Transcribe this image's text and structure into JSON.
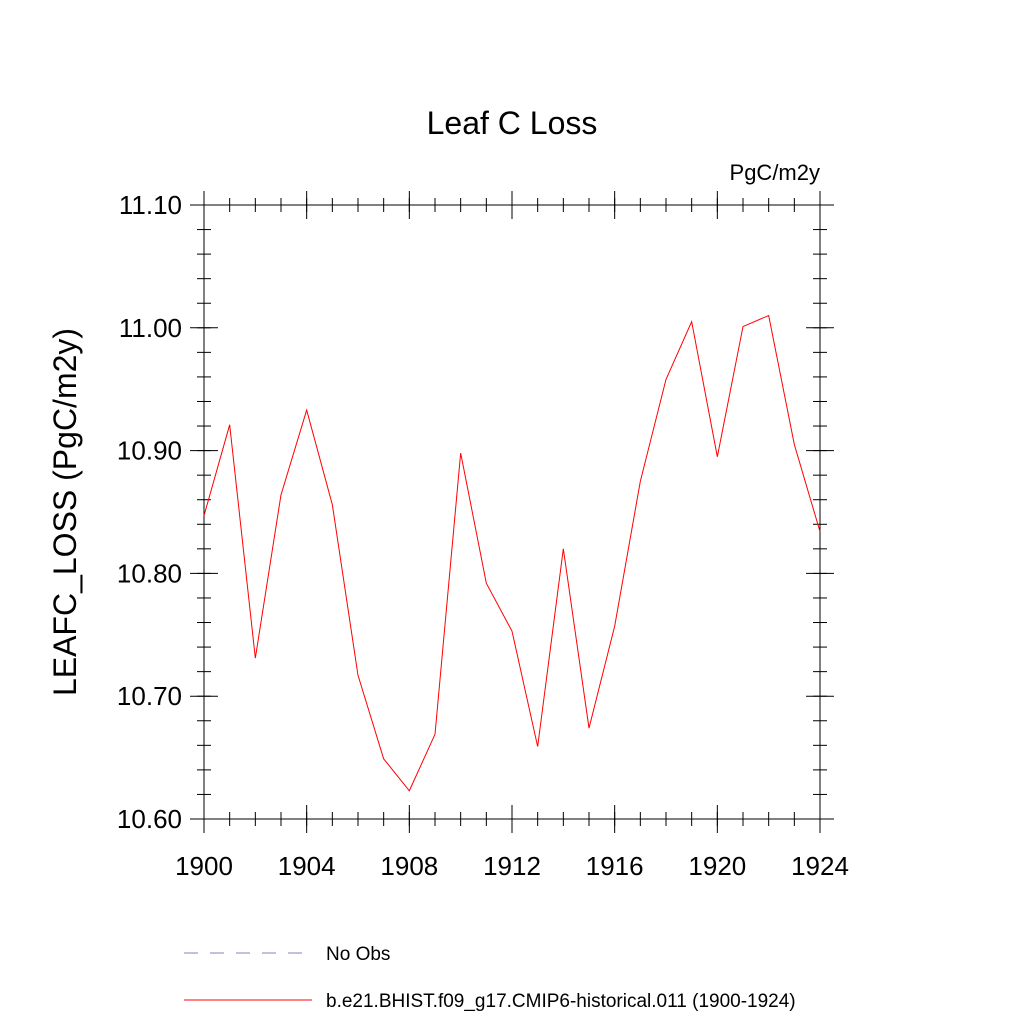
{
  "chart_data": {
    "type": "line",
    "title": "Leaf C Loss",
    "units": "PgC/m2y",
    "xlabel": "",
    "ylabel": "LEAFC_LOSS  (PgC/m2y)",
    "xlim": [
      1900,
      1924
    ],
    "ylim": [
      10.6,
      11.1
    ],
    "x_ticks": [
      1900,
      1904,
      1908,
      1912,
      1916,
      1920,
      1924
    ],
    "x_tick_labels": [
      "1900",
      "1904",
      "1908",
      "1912",
      "1916",
      "1920",
      "1924"
    ],
    "y_ticks": [
      10.6,
      10.7,
      10.8,
      10.9,
      11.0,
      11.1
    ],
    "y_tick_labels": [
      "10.60",
      "10.70",
      "10.80",
      "10.90",
      "11.00",
      "11.10"
    ],
    "grid": false,
    "legend_position": "bottom",
    "series": [
      {
        "name": "No Obs",
        "color": "#8080c0",
        "style": "dashed",
        "x": [],
        "values": []
      },
      {
        "name": "b.e21.BHIST.f09_g17.CMIP6-historical.011 (1900-1924)",
        "color": "#ff0000",
        "style": "solid",
        "x": [
          1900,
          1901,
          1902,
          1903,
          1904,
          1905,
          1906,
          1907,
          1908,
          1909,
          1910,
          1911,
          1912,
          1913,
          1914,
          1915,
          1916,
          1917,
          1918,
          1919,
          1920,
          1921,
          1922,
          1923,
          1924
        ],
        "values": [
          10.847,
          10.921,
          10.731,
          10.864,
          10.933,
          10.856,
          10.717,
          10.649,
          10.623,
          10.669,
          10.898,
          10.792,
          10.753,
          10.659,
          10.82,
          10.674,
          10.757,
          10.875,
          10.958,
          11.005,
          10.895,
          11.001,
          11.01,
          10.905,
          10.834
        ]
      }
    ]
  }
}
